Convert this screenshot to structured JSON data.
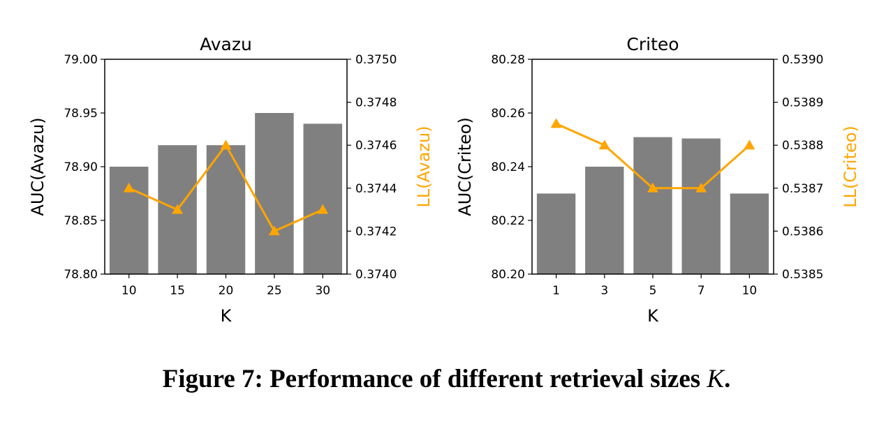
{
  "caption": {
    "prefix": "Figure 7: Performance of different retrieval sizes ",
    "variable": "K",
    "suffix": "."
  },
  "colors": {
    "bar": "#808080",
    "line": "#ffa500",
    "axis": "#000000"
  },
  "chart_data": [
    {
      "type": "bar",
      "title": "Avazu",
      "xlabel": "K",
      "ylabel": "AUC(Avazu)",
      "y2label": "LL(Avazu)",
      "categories": [
        "10",
        "15",
        "20",
        "25",
        "30"
      ],
      "ylim": [
        78.8,
        79.0
      ],
      "yticks": [
        "78.80",
        "78.85",
        "78.90",
        "78.95",
        "79.00"
      ],
      "y2lim": [
        0.374,
        0.375
      ],
      "y2ticks": [
        "0.3740",
        "0.3742",
        "0.3744",
        "0.3746",
        "0.3748",
        "0.3750"
      ],
      "series": [
        {
          "name": "AUC(Avazu)",
          "type": "bar",
          "axis": "left",
          "values": [
            78.9,
            78.92,
            78.92,
            78.95,
            78.94
          ]
        },
        {
          "name": "LL(Avazu)",
          "type": "line",
          "axis": "right",
          "marker": "triangle",
          "values": [
            0.3744,
            0.3743,
            0.3746,
            0.3742,
            0.3743
          ]
        }
      ]
    },
    {
      "type": "bar",
      "title": "Criteo",
      "xlabel": "K",
      "ylabel": "AUC(Criteo)",
      "y2label": "LL(Criteo)",
      "categories": [
        "1",
        "3",
        "5",
        "7",
        "10"
      ],
      "ylim": [
        80.2,
        80.28
      ],
      "yticks": [
        "80.20",
        "80.22",
        "80.24",
        "80.26",
        "80.28"
      ],
      "y2lim": [
        0.5385,
        0.539
      ],
      "y2ticks": [
        "0.5385",
        "0.5386",
        "0.5387",
        "0.5388",
        "0.5389",
        "0.5390"
      ],
      "series": [
        {
          "name": "AUC(Criteo)",
          "type": "bar",
          "axis": "left",
          "values": [
            80.23,
            80.24,
            80.251,
            80.2505,
            80.23
          ]
        },
        {
          "name": "LL(Criteo)",
          "type": "line",
          "axis": "right",
          "marker": "triangle",
          "values": [
            0.53885,
            0.5388,
            0.5387,
            0.5387,
            0.5388
          ]
        }
      ]
    }
  ]
}
